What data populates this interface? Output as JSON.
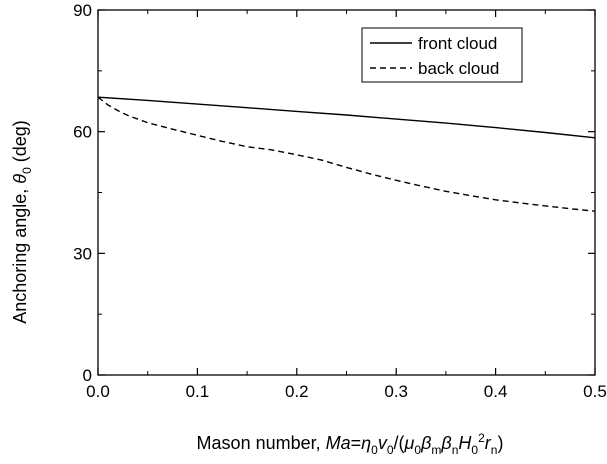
{
  "chart_data": {
    "type": "line",
    "title": "",
    "xlabel": {
      "prefix": "Mason number, ",
      "runs": [
        {
          "t": "Ma",
          "s": "i"
        },
        {
          "t": "=",
          "s": "n"
        },
        {
          "t": "η",
          "s": "i"
        },
        {
          "t": "0",
          "s": "sub"
        },
        {
          "t": "v",
          "s": "i"
        },
        {
          "t": "0",
          "s": "sub"
        },
        {
          "t": "/(",
          "s": "n"
        },
        {
          "t": "μ",
          "s": "i"
        },
        {
          "t": "0",
          "s": "sub"
        },
        {
          "t": "β",
          "s": "i"
        },
        {
          "t": "m",
          "s": "sub"
        },
        {
          "t": "β",
          "s": "i"
        },
        {
          "t": "n",
          "s": "sub"
        },
        {
          "t": "H",
          "s": "i"
        },
        {
          "t": "0",
          "s": "sub"
        },
        {
          "t": "2",
          "s": "sup"
        },
        {
          "t": "r",
          "s": "i"
        },
        {
          "t": "n",
          "s": "sub"
        },
        {
          "t": ")",
          "s": "n"
        }
      ]
    },
    "ylabel": {
      "prefix": "Anchoring angle, ",
      "runs": [
        {
          "t": "θ",
          "s": "i"
        },
        {
          "t": "0",
          "s": "sub"
        },
        {
          "t": " (deg)",
          "s": "n"
        }
      ]
    },
    "xlim": [
      0,
      0.5
    ],
    "ylim": [
      0,
      90
    ],
    "xticks": [
      0.0,
      0.1,
      0.2,
      0.3,
      0.4,
      0.5
    ],
    "xtick_labels": [
      "0.0",
      "0.1",
      "0.2",
      "0.3",
      "0.4",
      "0.5"
    ],
    "yticks": [
      0,
      30,
      60,
      90
    ],
    "ytick_labels": [
      "0",
      "30",
      "60",
      "90"
    ],
    "grid": false,
    "legend": {
      "placement": "top-right"
    },
    "series": [
      {
        "name": "front cloud",
        "style": "solid",
        "color": "#000000",
        "x": [
          0.0,
          0.05,
          0.1,
          0.15,
          0.2,
          0.25,
          0.3,
          0.35,
          0.4,
          0.45,
          0.5
        ],
        "y": [
          68.5,
          67.7,
          66.8,
          65.9,
          65.0,
          64.1,
          63.1,
          62.1,
          61.0,
          59.8,
          58.5
        ]
      },
      {
        "name": "back cloud",
        "style": "dashed",
        "color": "#000000",
        "x": [
          0.0,
          0.01,
          0.02,
          0.03,
          0.05,
          0.075,
          0.1,
          0.125,
          0.15,
          0.175,
          0.2,
          0.225,
          0.25,
          0.275,
          0.3,
          0.325,
          0.35,
          0.375,
          0.4,
          0.425,
          0.45,
          0.475,
          0.5
        ],
        "y": [
          68.5,
          66.6,
          65.2,
          64.0,
          62.2,
          60.6,
          59.1,
          57.6,
          56.3,
          55.5,
          54.3,
          53.0,
          51.2,
          49.5,
          48.0,
          46.6,
          45.3,
          44.2,
          43.2,
          42.4,
          41.7,
          41.0,
          40.4
        ]
      }
    ]
  }
}
